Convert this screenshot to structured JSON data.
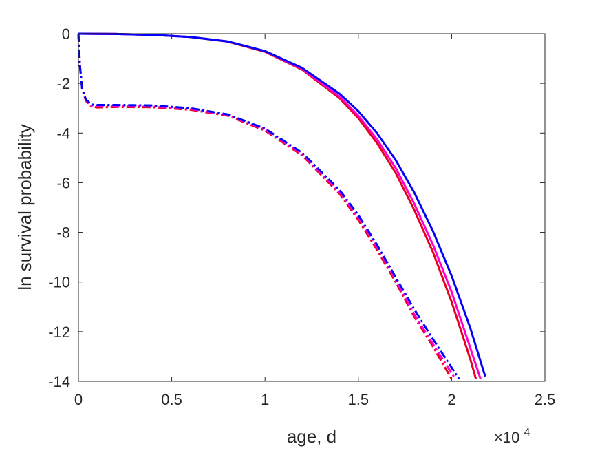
{
  "chart_data": {
    "type": "line",
    "title": "",
    "xlabel": "age, d",
    "ylabel": "ln survival probability",
    "x_multiplier_label": "×10",
    "x_multiplier_exponent": "4",
    "xlim": [
      0,
      25000
    ],
    "ylim": [
      -14,
      0
    ],
    "xticks": [
      0,
      5000,
      10000,
      15000,
      20000,
      25000
    ],
    "xtick_labels": [
      "0",
      "0.5",
      "1",
      "1.5",
      "2",
      "2.5"
    ],
    "yticks": [
      0,
      -2,
      -4,
      -6,
      -8,
      -10,
      -12,
      -14
    ],
    "ytick_labels": [
      "0",
      "-2",
      "-4",
      "-6",
      "-8",
      "-10",
      "-12",
      "-14"
    ],
    "grid": false,
    "box": true,
    "series": [
      {
        "color": "#e8001c",
        "style": "solid",
        "points": [
          [
            0,
            0
          ],
          [
            2000,
            -0.01
          ],
          [
            4000,
            -0.05
          ],
          [
            6000,
            -0.13
          ],
          [
            8000,
            -0.32
          ],
          [
            10000,
            -0.73
          ],
          [
            12000,
            -1.45
          ],
          [
            14000,
            -2.6
          ],
          [
            15000,
            -3.4
          ],
          [
            16000,
            -4.4
          ],
          [
            17000,
            -5.6
          ],
          [
            18000,
            -7.1
          ],
          [
            19000,
            -8.8
          ],
          [
            20000,
            -10.8
          ],
          [
            21000,
            -13.1
          ],
          [
            21300,
            -13.9
          ]
        ]
      },
      {
        "color": "#ff00cc",
        "style": "solid",
        "points": [
          [
            0,
            0
          ],
          [
            2000,
            -0.01
          ],
          [
            4000,
            -0.05
          ],
          [
            6000,
            -0.13
          ],
          [
            8000,
            -0.31
          ],
          [
            10000,
            -0.71
          ],
          [
            12000,
            -1.42
          ],
          [
            14000,
            -2.53
          ],
          [
            15000,
            -3.3
          ],
          [
            16000,
            -4.25
          ],
          [
            17000,
            -5.4
          ],
          [
            18000,
            -6.85
          ],
          [
            19000,
            -8.5
          ],
          [
            20000,
            -10.4
          ],
          [
            21000,
            -12.65
          ],
          [
            21550,
            -13.9
          ]
        ]
      },
      {
        "color": "#0000ff",
        "style": "solid",
        "points": [
          [
            0,
            0
          ],
          [
            2000,
            -0.01
          ],
          [
            4000,
            -0.05
          ],
          [
            6000,
            -0.13
          ],
          [
            8000,
            -0.31
          ],
          [
            10000,
            -0.7
          ],
          [
            12000,
            -1.38
          ],
          [
            14000,
            -2.42
          ],
          [
            15000,
            -3.12
          ],
          [
            16000,
            -4.0
          ],
          [
            17000,
            -5.08
          ],
          [
            18000,
            -6.4
          ],
          [
            19000,
            -7.95
          ],
          [
            20000,
            -9.75
          ],
          [
            21000,
            -11.85
          ],
          [
            21800,
            -13.8
          ]
        ]
      },
      {
        "color": "#e8001c",
        "style": "dashdot",
        "points": [
          [
            0,
            0
          ],
          [
            80,
            -1.3
          ],
          [
            200,
            -2.2
          ],
          [
            400,
            -2.7
          ],
          [
            700,
            -2.93
          ],
          [
            1000,
            -2.97
          ],
          [
            2000,
            -2.95
          ],
          [
            4000,
            -2.96
          ],
          [
            6000,
            -3.06
          ],
          [
            8000,
            -3.3
          ],
          [
            10000,
            -3.9
          ],
          [
            12000,
            -4.9
          ],
          [
            14000,
            -6.45
          ],
          [
            15000,
            -7.5
          ],
          [
            16000,
            -8.7
          ],
          [
            17000,
            -10.0
          ],
          [
            18000,
            -11.4
          ],
          [
            19000,
            -12.6
          ],
          [
            20000,
            -13.9
          ]
        ]
      },
      {
        "color": "#ff00cc",
        "style": "dashdot",
        "points": [
          [
            0,
            0
          ],
          [
            80,
            -1.3
          ],
          [
            200,
            -2.2
          ],
          [
            400,
            -2.68
          ],
          [
            700,
            -2.9
          ],
          [
            1000,
            -2.93
          ],
          [
            2000,
            -2.92
          ],
          [
            4000,
            -2.93
          ],
          [
            6000,
            -3.03
          ],
          [
            8000,
            -3.27
          ],
          [
            10000,
            -3.86
          ],
          [
            12000,
            -4.85
          ],
          [
            14000,
            -6.38
          ],
          [
            15000,
            -7.4
          ],
          [
            16000,
            -8.6
          ],
          [
            17000,
            -9.9
          ],
          [
            18000,
            -11.3
          ],
          [
            19000,
            -12.5
          ],
          [
            20200,
            -13.9
          ]
        ]
      },
      {
        "color": "#0000ff",
        "style": "dashdot",
        "points": [
          [
            0,
            0
          ],
          [
            80,
            -1.3
          ],
          [
            200,
            -2.2
          ],
          [
            400,
            -2.65
          ],
          [
            700,
            -2.85
          ],
          [
            1000,
            -2.87
          ],
          [
            2000,
            -2.87
          ],
          [
            4000,
            -2.89
          ],
          [
            6000,
            -3.0
          ],
          [
            8000,
            -3.25
          ],
          [
            10000,
            -3.82
          ],
          [
            12000,
            -4.8
          ],
          [
            14000,
            -6.3
          ],
          [
            15000,
            -7.3
          ],
          [
            16000,
            -8.5
          ],
          [
            17000,
            -9.8
          ],
          [
            18000,
            -11.1
          ],
          [
            19000,
            -12.3
          ],
          [
            20400,
            -13.9
          ]
        ]
      }
    ]
  }
}
